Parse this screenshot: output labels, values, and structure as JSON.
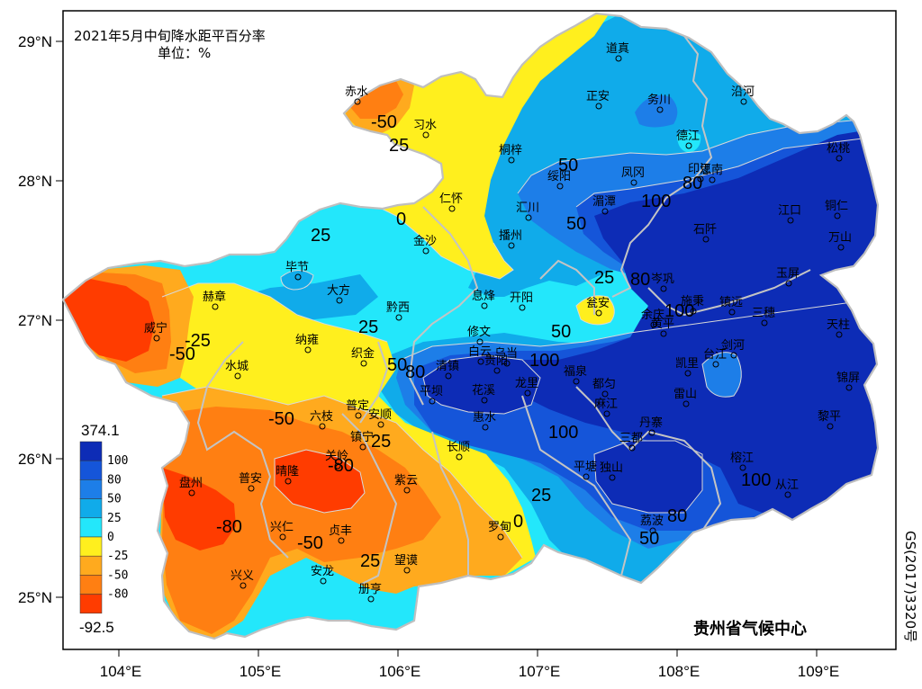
{
  "map": {
    "title_line1": "2021年5月中旬降水距平百分率",
    "title_line2": "单位：%",
    "credit": "贵州省气候中心",
    "approval_number": "GS(2017)3320号",
    "lat_labels": [
      "29°N",
      "28°N",
      "27°N",
      "26°N",
      "25°N"
    ],
    "lon_labels": [
      "104°E",
      "105°E",
      "106°E",
      "107°E",
      "108°E",
      "109°E"
    ],
    "colors": {
      "c_lt_neg80": "#ff3c00",
      "c_neg80_neg50": "#ff7f12",
      "c_neg50_neg25": "#ffaa1e",
      "c_neg25_0": "#ffef1e",
      "c_0_25": "#23e7fb",
      "c_25_50": "#10abea",
      "c_50_80": "#1d7ee8",
      "c_80_100": "#1555d9",
      "c_gt100": "#0d2cb6",
      "border": "#c4c4c4",
      "contour": "#d9d9d9"
    }
  },
  "legend": {
    "max_label": "374.1",
    "min_label": "-92.5",
    "ticks": [
      "100",
      "80",
      "50",
      "25",
      "0",
      "-25",
      "-50",
      "-80"
    ]
  },
  "contour_labels": [
    "-50",
    "25",
    "50",
    "100",
    "80",
    "25",
    "0",
    "-25",
    "-50",
    "25",
    "50",
    "80",
    "50",
    "100",
    "100",
    "100",
    "50",
    "25",
    "0",
    "-50",
    "-80",
    "-80",
    "-50",
    "25",
    "25",
    "80",
    "80",
    "100",
    "50",
    "25"
  ],
  "stations": [
    "道真",
    "务川",
    "沿河",
    "正安",
    "赤水",
    "习水",
    "德江",
    "桐梓",
    "绥阳",
    "凤冈",
    "印江",
    "松桃",
    "思南",
    "江口",
    "铜仁",
    "仁怀",
    "湄潭",
    "汇川",
    "石阡",
    "万山",
    "播州",
    "金沙",
    "毕节",
    "大方",
    "黔西",
    "赫章",
    "息烽",
    "开阳",
    "瓮安",
    "余庆",
    "镇远",
    "玉屏",
    "岑巩",
    "三穗",
    "天柱",
    "修文",
    "威宁",
    "纳雍",
    "织金",
    "水城",
    "清镇",
    "白云",
    "乌当",
    "贵阳",
    "龙里",
    "福泉",
    "黄平",
    "施秉",
    "凯里",
    "台江",
    "剑河",
    "锦屏",
    "平坝",
    "花溪",
    "麻江",
    "雷山",
    "黎平",
    "普定",
    "安顺",
    "六枝",
    "惠水",
    "都匀",
    "丹寨",
    "榕江",
    "从江",
    "长顺",
    "镇宁",
    "关岭",
    "平塘",
    "三都",
    "独山",
    "荔波",
    "紫云",
    "盘州",
    "普安",
    "晴隆",
    "兴仁",
    "贞丰",
    "罗甸",
    "望谟",
    "兴义",
    "安龙",
    "册亨"
  ]
}
